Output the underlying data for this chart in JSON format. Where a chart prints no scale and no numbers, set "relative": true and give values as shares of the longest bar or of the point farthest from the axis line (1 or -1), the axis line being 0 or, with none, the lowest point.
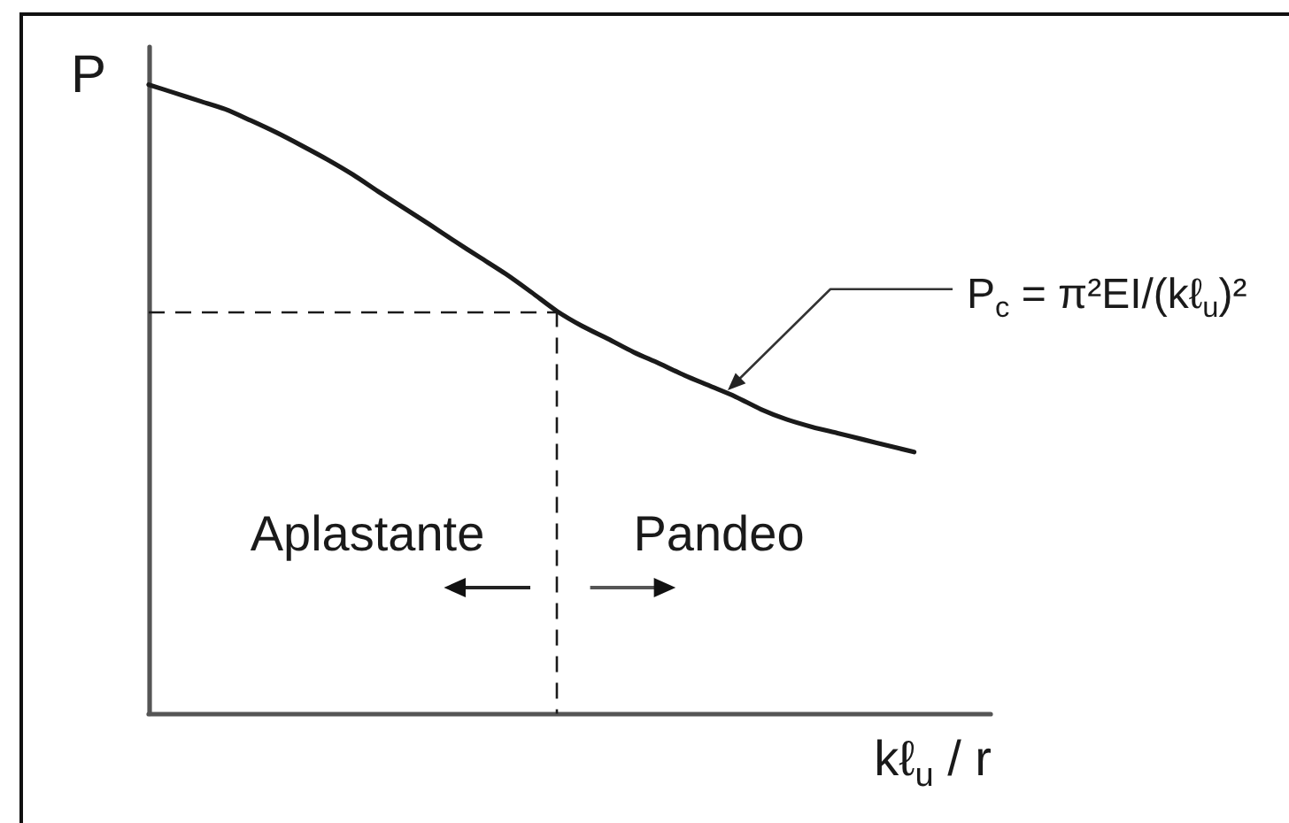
{
  "chart_data": {
    "type": "line",
    "relative": true,
    "ylabel": "P",
    "xlabel": "kℓ$_{u}$ / r",
    "categories": [
      null,
      null,
      null,
      null,
      null,
      null,
      null,
      null,
      null,
      null,
      null,
      null,
      null,
      null,
      null,
      null,
      null,
      null,
      null,
      null,
      null,
      null,
      null,
      null,
      null,
      null,
      null,
      null,
      null,
      null,
      null,
      null,
      null,
      null
    ],
    "series": [
      {
        "color": "#1a1a1a",
        "values": [
          1,
          0.987,
          0.974,
          0.961,
          0.943,
          0.924,
          0.903,
          0.881,
          0.857,
          0.83,
          0.804,
          0.778,
          0.751,
          0.725,
          0.699,
          0.67,
          0.64,
          0.616,
          0.596,
          0.575,
          0.557,
          0.538,
          0.521,
          0.504,
          0.484,
          0.468,
          0.456,
          0.446,
          0.436,
          0.426,
          0.416,
          null,
          null,
          null
        ]
      }
    ],
    "ref_lines": [
      {
        "axis": "y",
        "value": 0.64,
        "line_style": "dashed",
        "color": "#1a1a1a"
      }
    ],
    "annotations": [
      "Aplastante",
      "Pandeo",
      "P$_{c}$ = π²EI/(kℓ$_{u}$)²"
    ],
    "marker": "none",
    "line_style": "solid"
  }
}
